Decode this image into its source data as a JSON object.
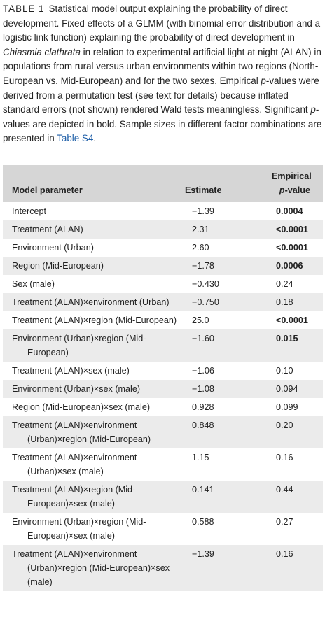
{
  "caption": {
    "label": "TABLE 1",
    "parts": [
      "Statistical model output explaining the probability of direct development. Fixed effects of a GLMM (with binomial error distribution and a logistic link function) explaining the probability of direct development in ",
      "Chiasmia clathrata",
      " in relation to experimental artificial light at night (ALAN) in populations from rural versus urban environments within two regions (North-European vs. Mid-European) and for the two sexes. Empirical ",
      "p",
      "-values were derived from a permutation test (see text for details) because inflated standard errors (not shown) rendered Wald tests meaningless. Significant ",
      "p",
      "-values are depicted in bold. Sample sizes in different factor combinations are presented in ",
      "Table S4",
      "."
    ]
  },
  "table": {
    "header": {
      "parameter": "Model parameter",
      "estimate": "Estimate",
      "p_value": [
        "Empirical",
        "p",
        "-value"
      ]
    },
    "rows": [
      {
        "parameter": "Intercept",
        "estimate": "−1.39",
        "p_value": "0.0004",
        "significant": true
      },
      {
        "parameter": "Treatment (ALAN)",
        "estimate": "2.31",
        "p_value": "<0.0001",
        "significant": true
      },
      {
        "parameter": "Environment (Urban)",
        "estimate": "2.60",
        "p_value": "<0.0001",
        "significant": true
      },
      {
        "parameter": "Region (Mid-European)",
        "estimate": "−1.78",
        "p_value": "0.0006",
        "significant": true
      },
      {
        "parameter": "Sex (male)",
        "estimate": "−0.430",
        "p_value": "0.24",
        "significant": false
      },
      {
        "parameter": "Treatment (ALAN)×environment (Urban)",
        "estimate": "−0.750",
        "p_value": "0.18",
        "significant": false
      },
      {
        "parameter": "Treatment (ALAN)×region (Mid-European)",
        "estimate": "25.0",
        "p_value": "<0.0001",
        "significant": true
      },
      {
        "parameter": "Environment (Urban)×region (Mid-European)",
        "estimate": "−1.60",
        "p_value": "0.015",
        "significant": true
      },
      {
        "parameter": "Treatment (ALAN)×sex (male)",
        "estimate": "−1.06",
        "p_value": "0.10",
        "significant": false
      },
      {
        "parameter": "Environment (Urban)×sex (male)",
        "estimate": "−1.08",
        "p_value": "0.094",
        "significant": false
      },
      {
        "parameter": "Region (Mid-European)×sex (male)",
        "estimate": "0.928",
        "p_value": "0.099",
        "significant": false
      },
      {
        "parameter": "Treatment (ALAN)×environment (Urban)×region (Mid-European)",
        "estimate": "0.848",
        "p_value": "0.20",
        "significant": false
      },
      {
        "parameter": "Treatment (ALAN)×environment (Urban)×sex (male)",
        "estimate": "1.15",
        "p_value": "0.16",
        "significant": false
      },
      {
        "parameter": "Treatment (ALAN)×region (Mid-European)×sex (male)",
        "estimate": "0.141",
        "p_value": "0.44",
        "significant": false
      },
      {
        "parameter": "Environment (Urban)×region (Mid-European)×sex (male)",
        "estimate": "0.588",
        "p_value": "0.27",
        "significant": false
      },
      {
        "parameter": "Treatment (ALAN)×environment (Urban)×region (Mid-European)×sex (male)",
        "estimate": "−1.39",
        "p_value": "0.16",
        "significant": false
      }
    ]
  }
}
